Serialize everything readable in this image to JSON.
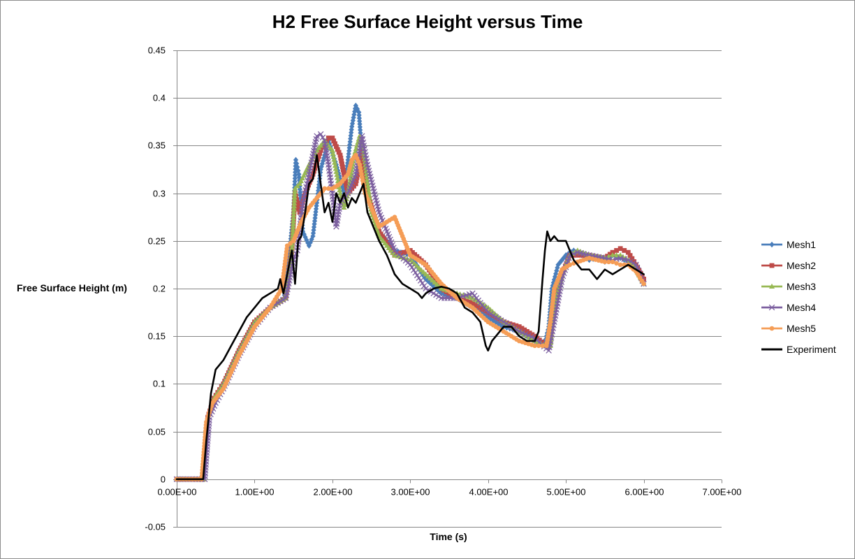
{
  "chart_data": {
    "type": "line",
    "title": "H2 Free Surface Height versus Time",
    "xlabel": "Time (s)",
    "ylabel": "Free Surface Height (m)",
    "xlim": [
      0,
      7
    ],
    "ylim": [
      -0.05,
      0.45
    ],
    "xticks": [
      0,
      1,
      2,
      3,
      4,
      5,
      6,
      7
    ],
    "xtick_labels": [
      "0.00E+00",
      "1.00E+00",
      "2.00E+00",
      "3.00E+00",
      "4.00E+00",
      "5.00E+00",
      "6.00E+00",
      "7.00E+00"
    ],
    "yticks": [
      -0.05,
      0,
      0.05,
      0.1,
      0.15,
      0.2,
      0.25,
      0.3,
      0.35,
      0.4,
      0.45
    ],
    "ytick_labels": [
      "-0.05",
      "0",
      "0.05",
      "0.1",
      "0.15",
      "0.2",
      "0.25",
      "0.3",
      "0.35",
      "0.4",
      "0.45"
    ],
    "grid": true,
    "legend_position": "right",
    "series": [
      {
        "name": "Mesh1",
        "color": "#4a7ebb",
        "marker": "diamond",
        "x": [
          0,
          0.34,
          0.4,
          0.48,
          0.6,
          0.8,
          1.0,
          1.2,
          1.38,
          1.45,
          1.5,
          1.53,
          1.57,
          1.62,
          1.7,
          1.75,
          1.85,
          1.95,
          2.05,
          2.15,
          2.25,
          2.3,
          2.34,
          2.4,
          2.5,
          2.6,
          2.8,
          3.0,
          3.2,
          3.4,
          3.6,
          3.8,
          4.0,
          4.2,
          4.4,
          4.6,
          4.72,
          4.78,
          4.82,
          4.9,
          5.0,
          5.1,
          5.2,
          5.3,
          5.4,
          5.5,
          5.6,
          5.7,
          5.8,
          5.9,
          6.0
        ],
        "y": [
          0,
          0,
          0.065,
          0.085,
          0.1,
          0.135,
          0.165,
          0.18,
          0.19,
          0.24,
          0.28,
          0.335,
          0.32,
          0.26,
          0.245,
          0.255,
          0.325,
          0.355,
          0.33,
          0.3,
          0.37,
          0.392,
          0.385,
          0.32,
          0.285,
          0.26,
          0.24,
          0.235,
          0.21,
          0.195,
          0.19,
          0.18,
          0.17,
          0.16,
          0.155,
          0.145,
          0.14,
          0.16,
          0.2,
          0.225,
          0.235,
          0.24,
          0.235,
          0.23,
          0.232,
          0.228,
          0.235,
          0.232,
          0.228,
          0.22,
          0.205
        ]
      },
      {
        "name": "Mesh2",
        "color": "#be4b48",
        "marker": "square",
        "x": [
          0,
          0.34,
          0.4,
          0.48,
          0.6,
          0.8,
          1.0,
          1.2,
          1.4,
          1.48,
          1.52,
          1.58,
          1.65,
          1.75,
          1.85,
          1.95,
          2.0,
          2.1,
          2.2,
          2.3,
          2.38,
          2.45,
          2.6,
          2.8,
          3.0,
          3.2,
          3.4,
          3.6,
          3.8,
          4.0,
          4.2,
          4.4,
          4.6,
          4.75,
          4.8,
          4.85,
          4.95,
          5.05,
          5.15,
          5.3,
          5.5,
          5.6,
          5.7,
          5.8,
          5.9,
          6.0
        ],
        "y": [
          0,
          0,
          0.065,
          0.085,
          0.1,
          0.135,
          0.165,
          0.18,
          0.19,
          0.24,
          0.3,
          0.28,
          0.3,
          0.32,
          0.345,
          0.358,
          0.358,
          0.34,
          0.3,
          0.31,
          0.345,
          0.3,
          0.26,
          0.235,
          0.24,
          0.225,
          0.2,
          0.19,
          0.185,
          0.175,
          0.165,
          0.16,
          0.15,
          0.14,
          0.145,
          0.185,
          0.215,
          0.235,
          0.235,
          0.235,
          0.232,
          0.238,
          0.242,
          0.238,
          0.225,
          0.21
        ]
      },
      {
        "name": "Mesh3",
        "color": "#98b954",
        "marker": "triangle",
        "x": [
          0,
          0.34,
          0.4,
          0.48,
          0.6,
          0.8,
          1.0,
          1.2,
          1.4,
          1.48,
          1.52,
          1.58,
          1.7,
          1.8,
          1.9,
          2.0,
          2.1,
          2.15,
          2.2,
          2.28,
          2.35,
          2.4,
          2.5,
          2.6,
          2.8,
          3.0,
          3.2,
          3.4,
          3.6,
          3.8,
          4.0,
          4.2,
          4.4,
          4.6,
          4.75,
          4.8,
          4.85,
          4.95,
          5.05,
          5.15,
          5.3,
          5.5,
          5.6,
          5.7,
          5.8,
          5.9,
          6.0
        ],
        "y": [
          0,
          0,
          0.065,
          0.085,
          0.1,
          0.135,
          0.165,
          0.18,
          0.19,
          0.24,
          0.305,
          0.31,
          0.33,
          0.345,
          0.355,
          0.345,
          0.3,
          0.285,
          0.3,
          0.34,
          0.36,
          0.345,
          0.28,
          0.255,
          0.235,
          0.23,
          0.215,
          0.2,
          0.195,
          0.19,
          0.18,
          0.165,
          0.155,
          0.145,
          0.14,
          0.14,
          0.18,
          0.215,
          0.235,
          0.24,
          0.235,
          0.232,
          0.235,
          0.235,
          0.23,
          0.22,
          0.205
        ]
      },
      {
        "name": "Mesh4",
        "color": "#7d60a0",
        "marker": "x",
        "x": [
          0,
          0.36,
          0.42,
          0.5,
          0.6,
          0.8,
          1.0,
          1.2,
          1.4,
          1.5,
          1.55,
          1.62,
          1.7,
          1.8,
          1.85,
          1.9,
          1.95,
          2.0,
          2.05,
          2.1,
          2.2,
          2.3,
          2.38,
          2.45,
          2.6,
          2.8,
          3.0,
          3.2,
          3.4,
          3.6,
          3.8,
          4.0,
          4.2,
          4.4,
          4.6,
          4.78,
          4.85,
          4.95,
          5.05,
          5.15,
          5.3,
          5.5,
          5.6,
          5.7,
          5.8,
          5.9,
          6.0
        ],
        "y": [
          0,
          0,
          0.065,
          0.08,
          0.095,
          0.13,
          0.16,
          0.18,
          0.19,
          0.23,
          0.24,
          0.29,
          0.32,
          0.36,
          0.362,
          0.355,
          0.33,
          0.3,
          0.265,
          0.29,
          0.3,
          0.32,
          0.36,
          0.33,
          0.28,
          0.24,
          0.225,
          0.2,
          0.19,
          0.19,
          0.195,
          0.175,
          0.165,
          0.155,
          0.148,
          0.135,
          0.165,
          0.21,
          0.235,
          0.238,
          0.235,
          0.232,
          0.23,
          0.232,
          0.23,
          0.225,
          0.205
        ]
      },
      {
        "name": "Mesh5",
        "color": "#f59d56",
        "marker": "circle",
        "x": [
          0,
          0.32,
          0.38,
          0.46,
          0.6,
          0.8,
          1.0,
          1.2,
          1.35,
          1.42,
          1.5,
          1.6,
          1.7,
          1.8,
          1.9,
          2.0,
          2.1,
          2.2,
          2.25,
          2.3,
          2.35,
          2.42,
          2.5,
          2.6,
          2.7,
          2.8,
          2.9,
          3.0,
          3.2,
          3.4,
          3.6,
          3.8,
          4.0,
          4.2,
          4.4,
          4.6,
          4.7,
          4.75,
          4.8,
          4.85,
          4.95,
          5.05,
          5.15,
          5.3,
          5.5,
          5.6,
          5.7,
          5.8,
          5.9,
          6.0
        ],
        "y": [
          0,
          0,
          0.06,
          0.08,
          0.095,
          0.13,
          0.16,
          0.18,
          0.2,
          0.245,
          0.25,
          0.27,
          0.285,
          0.295,
          0.305,
          0.305,
          0.31,
          0.32,
          0.335,
          0.34,
          0.33,
          0.3,
          0.285,
          0.265,
          0.27,
          0.275,
          0.255,
          0.235,
          0.225,
          0.205,
          0.19,
          0.18,
          0.165,
          0.155,
          0.145,
          0.14,
          0.14,
          0.14,
          0.165,
          0.2,
          0.22,
          0.225,
          0.228,
          0.232,
          0.228,
          0.228,
          0.225,
          0.225,
          0.218,
          0.205
        ]
      },
      {
        "name": "Experiment",
        "color": "#000000",
        "marker": "none",
        "x": [
          0,
          0.34,
          0.38,
          0.44,
          0.5,
          0.6,
          0.7,
          0.8,
          0.9,
          1.0,
          1.1,
          1.2,
          1.3,
          1.33,
          1.37,
          1.42,
          1.48,
          1.52,
          1.56,
          1.6,
          1.65,
          1.7,
          1.75,
          1.8,
          1.85,
          1.9,
          1.95,
          2.0,
          2.05,
          2.1,
          2.15,
          2.2,
          2.25,
          2.3,
          2.35,
          2.4,
          2.45,
          2.5,
          2.6,
          2.7,
          2.8,
          2.9,
          3.0,
          3.1,
          3.15,
          3.2,
          3.3,
          3.4,
          3.5,
          3.6,
          3.7,
          3.8,
          3.9,
          3.97,
          4.0,
          4.05,
          4.1,
          4.2,
          4.3,
          4.4,
          4.5,
          4.6,
          4.65,
          4.7,
          4.73,
          4.76,
          4.8,
          4.85,
          4.9,
          5.0,
          5.1,
          5.2,
          5.3,
          5.4,
          5.5,
          5.6,
          5.7,
          5.8,
          5.9,
          6.0
        ],
        "y": [
          0,
          0,
          0.04,
          0.09,
          0.115,
          0.125,
          0.14,
          0.155,
          0.17,
          0.18,
          0.19,
          0.195,
          0.2,
          0.21,
          0.195,
          0.215,
          0.24,
          0.205,
          0.25,
          0.255,
          0.28,
          0.31,
          0.315,
          0.34,
          0.31,
          0.28,
          0.29,
          0.27,
          0.3,
          0.29,
          0.3,
          0.285,
          0.295,
          0.29,
          0.3,
          0.31,
          0.28,
          0.27,
          0.25,
          0.235,
          0.215,
          0.205,
          0.2,
          0.195,
          0.19,
          0.195,
          0.2,
          0.202,
          0.2,
          0.195,
          0.18,
          0.175,
          0.165,
          0.14,
          0.135,
          0.145,
          0.15,
          0.16,
          0.16,
          0.15,
          0.145,
          0.145,
          0.155,
          0.21,
          0.24,
          0.26,
          0.25,
          0.255,
          0.25,
          0.25,
          0.23,
          0.22,
          0.22,
          0.21,
          0.22,
          0.215,
          0.22,
          0.225,
          0.22,
          0.215
        ]
      }
    ]
  }
}
